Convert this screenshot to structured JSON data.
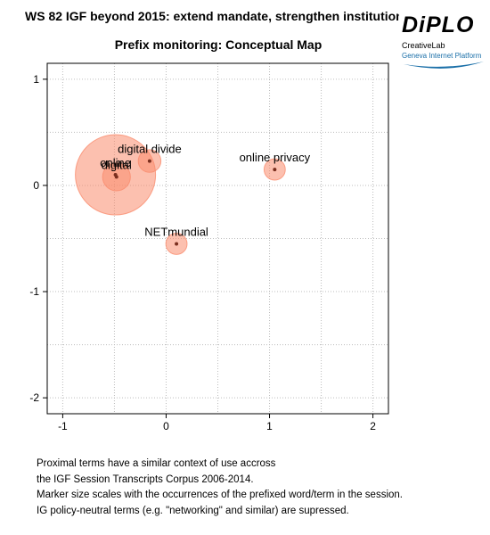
{
  "header": {
    "title": "WS 82 IGF beyond 2015: extend mandate, strengthen institution",
    "subtitle": "Prefix monitoring: Conceptual Map"
  },
  "logo": {
    "word": "DiPLO",
    "line1": "CreativeLab",
    "line2": "Geneva Internet Platform",
    "accent_color": "#1a6fa8"
  },
  "chart_data": {
    "type": "scatter",
    "title": "Prefix monitoring: Conceptual Map",
    "xlabel": "",
    "ylabel": "",
    "xlim": [
      -1.15,
      2.15
    ],
    "ylim": [
      -2.15,
      1.15
    ],
    "x_ticks": [
      -1,
      0,
      1,
      2
    ],
    "y_ticks": [
      1,
      0,
      -1,
      -2
    ],
    "grid": true,
    "bubble_color": "#fa8c6e",
    "points": [
      {
        "label": "online",
        "x": -0.49,
        "y": 0.1,
        "size": 100
      },
      {
        "label": "digital",
        "x": -0.48,
        "y": 0.08,
        "size": 12
      },
      {
        "label": "digital divide",
        "x": -0.16,
        "y": 0.23,
        "size": 8
      },
      {
        "label": "online privacy",
        "x": 1.05,
        "y": 0.15,
        "size": 7
      },
      {
        "label": "NETmundial",
        "x": 0.1,
        "y": -0.55,
        "size": 7
      }
    ]
  },
  "caption": {
    "lines": [
      "Proximal terms have a similar context of use accross",
      "the IGF Session Transcripts Corpus 2006-2014.",
      "Marker size scales with the occurrences of the prefixed word/term in the session.",
      "IG policy-neutral terms (e.g. \"networking\" and similar) are supressed."
    ]
  }
}
